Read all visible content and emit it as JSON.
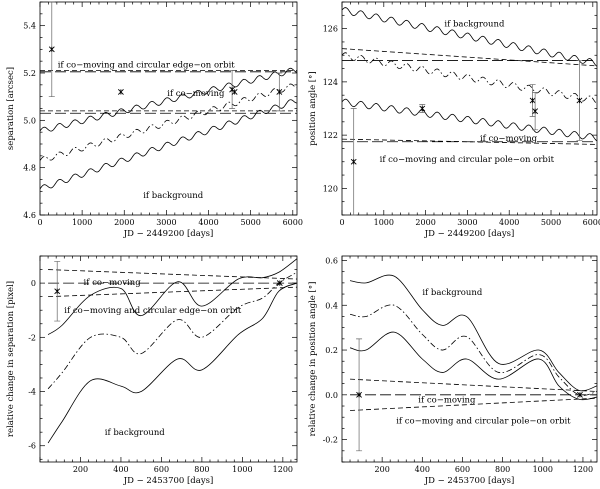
{
  "chart_data": [
    {
      "type": "line",
      "panel": "top-left",
      "xlabel": "JD − 2449200 [days]",
      "ylabel": "separation [arcsec]",
      "xlim": [
        0,
        6100
      ],
      "ylim": [
        4.6,
        5.5
      ],
      "xticks": [
        0,
        1000,
        2000,
        3000,
        4000,
        5000,
        6000
      ],
      "yticks": [
        4.6,
        4.8,
        5.0,
        5.2,
        5.4
      ],
      "ytick_decimals": 1,
      "series": [
        {
          "name": "co-moving and circular edge-on orbit upper",
          "style": "dashed",
          "x": [
            0,
            6100
          ],
          "y": [
            5.21,
            5.21
          ]
        },
        {
          "name": "co-moving and circular edge-on orbit lower",
          "style": "dashed",
          "x": [
            0,
            6100
          ],
          "y": [
            5.04,
            5.04
          ]
        },
        {
          "name": "co-moving upper",
          "style": "longdash",
          "x": [
            0,
            6100
          ],
          "y": [
            5.205,
            5.205
          ]
        },
        {
          "name": "co-moving lower",
          "style": "longdash",
          "x": [
            0,
            6100
          ],
          "y": [
            5.03,
            5.03
          ]
        },
        {
          "name": "background upper",
          "style": "solid",
          "x": [
            0,
            6100
          ],
          "y": [
            4.955,
            5.215
          ],
          "wave_amp": 0.012,
          "wave_period": 365
        },
        {
          "name": "background mean",
          "style": "dashdot",
          "x": [
            0,
            6100
          ],
          "y": [
            4.83,
            5.15
          ],
          "wave_amp": 0.012,
          "wave_period": 365
        },
        {
          "name": "background lower",
          "style": "solid",
          "x": [
            0,
            6100
          ],
          "y": [
            4.71,
            5.085
          ],
          "wave_amp": 0.012,
          "wave_period": 365
        }
      ],
      "points": [
        {
          "x": 280,
          "y": 5.3,
          "err": 0.2
        },
        {
          "x": 1920,
          "y": 5.12,
          "err": 0
        },
        {
          "x": 4560,
          "y": 5.13,
          "err": 0.08
        },
        {
          "x": 4620,
          "y": 5.12,
          "err": 0
        },
        {
          "x": 5680,
          "y": 5.12,
          "err": 0.08
        }
      ],
      "annotations": [
        {
          "text": "if co−moving and circular edge−on orbit",
          "x": 420,
          "y": 5.235
        },
        {
          "text": "if co−moving",
          "x": 3020,
          "y": 5.115
        },
        {
          "text": "if background",
          "x": 2450,
          "y": 4.685
        }
      ]
    },
    {
      "type": "line",
      "panel": "top-right",
      "xlabel": "JD − 2449200 [days]",
      "ylabel": "position angle [°]",
      "xlim": [
        0,
        6100
      ],
      "ylim": [
        119,
        127
      ],
      "xticks": [
        0,
        1000,
        2000,
        3000,
        4000,
        5000,
        6000
      ],
      "yticks": [
        120,
        122,
        124,
        126
      ],
      "ytick_decimals": 0,
      "series": [
        {
          "name": "co-moving upper",
          "style": "longdash",
          "x": [
            0,
            6100
          ],
          "y": [
            124.8,
            124.8
          ]
        },
        {
          "name": "co-moving lower",
          "style": "longdash",
          "x": [
            0,
            6100
          ],
          "y": [
            121.75,
            121.75
          ]
        },
        {
          "name": "co-moving and circular pole-on orbit upper",
          "style": "dashed",
          "x": [
            0,
            6100
          ],
          "y": [
            125.25,
            124.6
          ]
        },
        {
          "name": "co-moving and circular pole-on orbit lower",
          "style": "dashed",
          "x": [
            0,
            6100
          ],
          "y": [
            121.85,
            121.65
          ]
        },
        {
          "name": "background upper",
          "style": "solid",
          "x": [
            0,
            6100
          ],
          "y": [
            126.7,
            124.7
          ],
          "wave_amp": 0.12,
          "wave_period": 365
        },
        {
          "name": "background mean",
          "style": "dashdot",
          "x": [
            0,
            6100
          ],
          "y": [
            125.0,
            123.3
          ],
          "wave_amp": 0.12,
          "wave_period": 365
        },
        {
          "name": "background lower",
          "style": "solid",
          "x": [
            0,
            6100
          ],
          "y": [
            123.25,
            121.9
          ],
          "wave_amp": 0.12,
          "wave_period": 365
        }
      ],
      "points": [
        {
          "x": 280,
          "y": 121.0,
          "err": 2.0
        },
        {
          "x": 1920,
          "y": 123.0,
          "err": 0.15
        },
        {
          "x": 4560,
          "y": 123.3,
          "err": 0.6
        },
        {
          "x": 4620,
          "y": 122.9,
          "err": 0.7
        },
        {
          "x": 5680,
          "y": 123.3,
          "err": 1.5
        }
      ],
      "annotations": [
        {
          "text": "if background",
          "x": 2450,
          "y": 126.2
        },
        {
          "text": "if co−moving",
          "x": 3300,
          "y": 121.9
        },
        {
          "text": "if co−moving and circular pole−on orbit",
          "x": 900,
          "y": 121.1
        }
      ]
    },
    {
      "type": "line",
      "panel": "bottom-left",
      "xlabel": "JD − 2453700 [days]",
      "ylabel": "relative change in separation [pixel]",
      "xlim": [
        0,
        1270
      ],
      "ylim": [
        -6.6,
        1.0
      ],
      "xticks": [
        200,
        400,
        600,
        800,
        1000,
        1200
      ],
      "yticks": [
        -6,
        -4,
        -2,
        0
      ],
      "ytick_decimals": 0,
      "series": [
        {
          "name": "co-moving upper",
          "style": "dashed",
          "x": [
            40,
            1270
          ],
          "y": [
            0.5,
            0.15
          ]
        },
        {
          "name": "co-moving center",
          "style": "longdash",
          "x": [
            40,
            1270
          ],
          "y": [
            0.0,
            0.0
          ]
        },
        {
          "name": "co-moving and circular edge-on orbit",
          "style": "dashed",
          "x": [
            40,
            1270
          ],
          "y": [
            -0.5,
            -0.15
          ]
        },
        {
          "name": "background upper",
          "style": "solid",
          "x": [
            40,
            110,
            250,
            400,
            500,
            680,
            800,
            980,
            1100,
            1180,
            1270
          ],
          "y": [
            -1.9,
            -1.55,
            -0.45,
            -0.2,
            -1.2,
            0.05,
            -0.85,
            0.15,
            0.2,
            0.4,
            0.9
          ]
        },
        {
          "name": "background mean",
          "style": "dashdot",
          "x": [
            40,
            110,
            250,
            400,
            500,
            680,
            800,
            980,
            1100,
            1180,
            1270
          ],
          "y": [
            -3.9,
            -3.3,
            -2.0,
            -2.0,
            -2.6,
            -1.35,
            -2.0,
            -0.9,
            -0.55,
            0.0,
            0.4
          ]
        },
        {
          "name": "background lower",
          "style": "solid",
          "x": [
            40,
            110,
            250,
            400,
            500,
            680,
            800,
            980,
            1100,
            1180,
            1270
          ],
          "y": [
            -5.9,
            -5.1,
            -3.6,
            -3.8,
            -4.0,
            -2.8,
            -3.2,
            -1.9,
            -1.3,
            -0.3,
            0.0
          ]
        }
      ],
      "points": [
        {
          "x": 85,
          "y": -0.3,
          "err": 1.1
        },
        {
          "x": 1185,
          "y": 0.0,
          "err": 0
        }
      ],
      "annotations": [
        {
          "text": "if co−moving",
          "x": 215,
          "y": 0.05
        },
        {
          "text": "if co−moving and circular edge−on orbit",
          "x": 120,
          "y": -1.0
        },
        {
          "text": "if background",
          "x": 320,
          "y": -5.5
        }
      ]
    },
    {
      "type": "line",
      "panel": "bottom-right",
      "xlabel": "JD − 2453700 [days]",
      "ylabel": "relative change in position angle [°]",
      "xlim": [
        0,
        1270
      ],
      "ylim": [
        -0.3,
        0.62
      ],
      "xticks": [
        200,
        400,
        600,
        800,
        1000,
        1200
      ],
      "yticks": [
        -0.2,
        0.0,
        0.2,
        0.4,
        0.6
      ],
      "ytick_decimals": 1,
      "series": [
        {
          "name": "co-moving and circular pole-on orbit upper",
          "style": "dashed",
          "x": [
            40,
            1270
          ],
          "y": [
            0.07,
            0.015
          ]
        },
        {
          "name": "co-moving center",
          "style": "longdash",
          "x": [
            40,
            1270
          ],
          "y": [
            0.0,
            0.0
          ]
        },
        {
          "name": "co-moving and circular pole-on orbit lower",
          "style": "dashed",
          "x": [
            40,
            1270
          ],
          "y": [
            -0.07,
            -0.015
          ]
        },
        {
          "name": "background upper",
          "style": "solid",
          "x": [
            40,
            120,
            260,
            400,
            500,
            620,
            780,
            980,
            1080,
            1180,
            1270
          ],
          "y": [
            0.51,
            0.5,
            0.53,
            0.38,
            0.31,
            0.35,
            0.14,
            0.2,
            0.1,
            0.02,
            0.04
          ]
        },
        {
          "name": "background mean",
          "style": "dashdot",
          "x": [
            40,
            120,
            260,
            400,
            500,
            620,
            780,
            980,
            1080,
            1180,
            1270
          ],
          "y": [
            0.36,
            0.35,
            0.4,
            0.27,
            0.2,
            0.26,
            0.1,
            0.18,
            0.08,
            0.0,
            0.015
          ]
        },
        {
          "name": "background lower",
          "style": "solid",
          "x": [
            40,
            120,
            260,
            400,
            500,
            620,
            780,
            980,
            1080,
            1180,
            1270
          ],
          "y": [
            0.21,
            0.2,
            0.28,
            0.16,
            0.1,
            0.16,
            0.07,
            0.16,
            0.04,
            -0.02,
            -0.01
          ]
        }
      ],
      "points": [
        {
          "x": 85,
          "y": 0.0,
          "err": 0.25
        },
        {
          "x": 1185,
          "y": 0.0,
          "err": 0
        }
      ],
      "annotations": [
        {
          "text": "if background",
          "x": 400,
          "y": 0.46
        },
        {
          "text": "if co−moving",
          "x": 380,
          "y": -0.02
        },
        {
          "text": "if co−moving and circular pole−on orbit",
          "x": 270,
          "y": -0.115
        }
      ]
    }
  ]
}
